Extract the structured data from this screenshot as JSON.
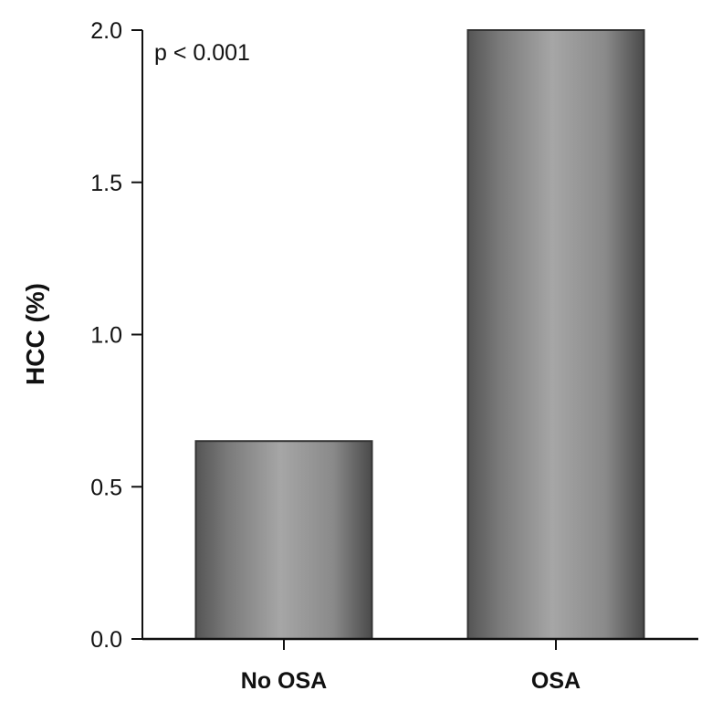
{
  "chart_data": {
    "type": "bar",
    "categories": [
      "No OSA",
      "OSA"
    ],
    "values": [
      0.65,
      2.0
    ],
    "title": "",
    "xlabel": "",
    "ylabel": "HCC (%)",
    "ylim": [
      0,
      2.0
    ],
    "yticks": [
      0.0,
      0.5,
      1.0,
      1.5,
      2.0
    ],
    "ytick_labels": [
      "0.0",
      "0.5",
      "1.0",
      "1.5",
      "2.0"
    ],
    "annotation": "p < 0.001",
    "grid": false,
    "legend": "none",
    "colors": {
      "bar_edge": "#333333",
      "bar_dark": "#4a4a4a",
      "bar_light": "#a6a6a6",
      "axis": "#111111"
    }
  }
}
